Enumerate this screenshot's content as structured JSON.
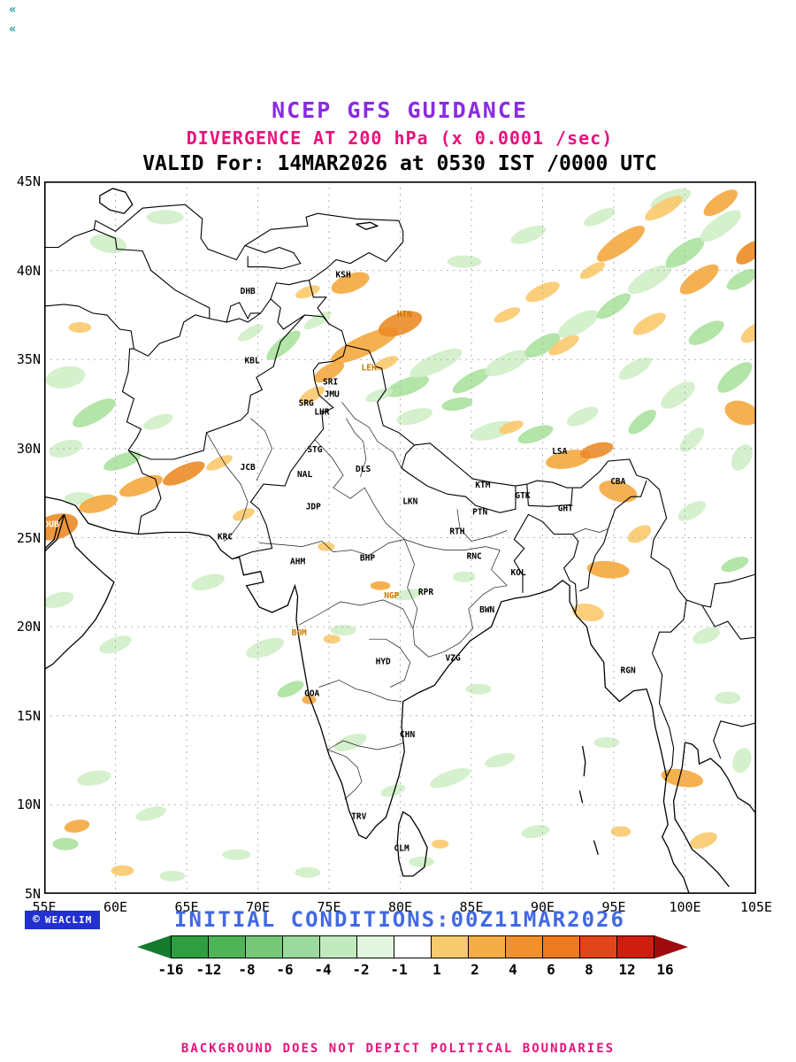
{
  "page": {
    "corner_glyph": "«",
    "background": "#ffffff"
  },
  "titles": {
    "line1": "NCEP GFS GUIDANCE",
    "line1_color": "#8a2be2",
    "line2": "DIVERGENCE AT 200 hPa (x 0.0001 /sec)",
    "line2_color": "#e8127c",
    "line3": "VALID For: 14MAR2026 at 0530 IST /0000 UTC",
    "line3_color": "#000000"
  },
  "footer": {
    "logo_symbol": "©",
    "logo_text": "WEACLIM",
    "logo_bg": "#2130cf",
    "initial_conditions": "INITIAL CONDITIONS:00Z11MAR2026",
    "initial_conditions_color": "#4169e1",
    "disclaimer": "BACKGROUND DOES NOT DEPICT POLITICAL BOUNDARIES",
    "disclaimer_color": "#e8127c"
  },
  "chart_data": {
    "type": "heatmap",
    "title": "NCEP GFS GUIDANCE",
    "subtitle": "DIVERGENCE AT 200 hPa (x 0.0001 /sec)",
    "valid": "14MAR2026 at 0530 IST /0000 UTC",
    "initial_conditions": "00Z11MAR2026",
    "grid": true,
    "legend_position": "bottom",
    "x_axis": {
      "range": [
        55,
        105
      ],
      "ticks": [
        55,
        60,
        65,
        70,
        75,
        80,
        85,
        90,
        95,
        100,
        105
      ],
      "labels": [
        "55E",
        "60E",
        "65E",
        "70E",
        "75E",
        "80E",
        "85E",
        "90E",
        "95E",
        "100E",
        "105E"
      ]
    },
    "y_axis": {
      "range": [
        5,
        45
      ],
      "ticks": [
        45,
        40,
        35,
        30,
        25,
        20,
        15,
        10,
        5
      ],
      "labels": [
        "45N",
        "40N",
        "35N",
        "30N",
        "25N",
        "20N",
        "15N",
        "10N",
        "5N"
      ]
    },
    "colorbar": {
      "levels": [
        "-16",
        "-12",
        "-8",
        "-6",
        "-4",
        "-2",
        "-1",
        "1",
        "2",
        "4",
        "6",
        "8",
        "12",
        "16"
      ],
      "segment_colors": [
        "#2f9e41",
        "#4fb456",
        "#76c878",
        "#9cd99c",
        "#c2eabf",
        "#e2f5de",
        "#ffffff",
        "#f7ca6e",
        "#f5ae47",
        "#f0912e",
        "#ee7a1f",
        "#e2451a",
        "#cf1d10"
      ],
      "arrow_left_color": "#157a2e",
      "arrow_right_color": "#9e0b0e"
    },
    "shading_palette": {
      "g1": "#cfeec6",
      "g2": "#abe19e",
      "o1": "#f9c96d",
      "o2": "#f4a93e",
      "o3": "#ec8b26"
    },
    "patches": [
      [
        80.5,
        33.5,
        1.6,
        0.45,
        -20,
        "g2"
      ],
      [
        82.5,
        34.8,
        2.0,
        0.5,
        -25,
        "g1"
      ],
      [
        85,
        33.8,
        1.5,
        0.4,
        -30,
        "g2"
      ],
      [
        87.5,
        34.8,
        1.7,
        0.5,
        -25,
        "g1"
      ],
      [
        90,
        35.8,
        1.4,
        0.45,
        -30,
        "g2"
      ],
      [
        92.5,
        37,
        1.6,
        0.5,
        -30,
        "g1"
      ],
      [
        95,
        38,
        1.4,
        0.4,
        -35,
        "g2"
      ],
      [
        97.5,
        39.5,
        1.7,
        0.5,
        -30,
        "g1"
      ],
      [
        100,
        41,
        1.6,
        0.5,
        -35,
        "g2"
      ],
      [
        102.5,
        42.5,
        1.7,
        0.5,
        -35,
        "g1"
      ],
      [
        104,
        39.5,
        1.2,
        0.4,
        -30,
        "g2"
      ],
      [
        99,
        44,
        1.5,
        0.45,
        -20,
        "g1"
      ],
      [
        94,
        43,
        1.2,
        0.35,
        -25,
        "g1"
      ],
      [
        89,
        42,
        1.3,
        0.4,
        -20,
        "g1"
      ],
      [
        84.5,
        40.5,
        1.2,
        0.35,
        0,
        "g1"
      ],
      [
        101.5,
        36.5,
        1.4,
        0.45,
        -30,
        "g2"
      ],
      [
        103.5,
        34,
        1.5,
        0.5,
        -40,
        "g2"
      ],
      [
        99.5,
        33,
        1.4,
        0.5,
        -35,
        "g1"
      ],
      [
        96.5,
        34.5,
        1.3,
        0.4,
        -30,
        "g1"
      ],
      [
        86.5,
        31,
        1.6,
        0.45,
        -15,
        "g1"
      ],
      [
        89.5,
        30.8,
        1.3,
        0.4,
        -20,
        "g2"
      ],
      [
        92.8,
        31.8,
        1.2,
        0.4,
        -25,
        "g1"
      ],
      [
        84,
        32.5,
        1.1,
        0.35,
        -10,
        "g2"
      ],
      [
        81,
        31.8,
        1.3,
        0.4,
        -15,
        "g1"
      ],
      [
        78.5,
        33,
        1.0,
        0.3,
        -20,
        "g1"
      ],
      [
        97,
        31.5,
        1.2,
        0.4,
        -40,
        "g2"
      ],
      [
        100.5,
        30.5,
        1.1,
        0.4,
        -45,
        "g1"
      ],
      [
        104,
        29.5,
        1.0,
        0.5,
        -60,
        "g1"
      ],
      [
        71.8,
        35.8,
        1.5,
        0.4,
        -40,
        "g2"
      ],
      [
        74.2,
        37.2,
        1.1,
        0.3,
        -30,
        "g1"
      ],
      [
        69.5,
        36.5,
        1.0,
        0.3,
        -30,
        "g1"
      ],
      [
        56.5,
        34,
        1.4,
        0.6,
        -10,
        "g1"
      ],
      [
        58.5,
        32,
        1.7,
        0.5,
        -30,
        "g2"
      ],
      [
        56.5,
        30,
        1.2,
        0.45,
        -15,
        "g1"
      ],
      [
        60.5,
        29.3,
        1.4,
        0.4,
        -20,
        "g2"
      ],
      [
        63,
        31.5,
        1.1,
        0.35,
        -20,
        "g1"
      ],
      [
        57.5,
        27.2,
        1.1,
        0.35,
        0,
        "g1"
      ],
      [
        59.5,
        41.5,
        1.3,
        0.5,
        10,
        "g1"
      ],
      [
        63.5,
        43,
        1.3,
        0.4,
        0,
        "g1"
      ],
      [
        56,
        21.5,
        1.1,
        0.4,
        -15,
        "g1"
      ],
      [
        60,
        19,
        1.2,
        0.4,
        -20,
        "g1"
      ],
      [
        66.5,
        22.5,
        1.2,
        0.4,
        -15,
        "g1"
      ],
      [
        70.5,
        18.8,
        1.4,
        0.45,
        -20,
        "g1"
      ],
      [
        72.3,
        16.5,
        1.0,
        0.35,
        -25,
        "g2"
      ],
      [
        76,
        19.8,
        0.9,
        0.3,
        0,
        "g1"
      ],
      [
        80.5,
        21.8,
        1.0,
        0.3,
        -10,
        "g1"
      ],
      [
        84.5,
        22.8,
        0.8,
        0.3,
        0,
        "g1"
      ],
      [
        76.5,
        13.5,
        1.2,
        0.4,
        -20,
        "g1"
      ],
      [
        79.5,
        10.8,
        0.9,
        0.3,
        -15,
        "g1"
      ],
      [
        83.5,
        11.5,
        1.5,
        0.4,
        -20,
        "g1"
      ],
      [
        87,
        12.5,
        1.1,
        0.35,
        -15,
        "g1"
      ],
      [
        85.5,
        16.5,
        0.9,
        0.3,
        0,
        "g1"
      ],
      [
        81.5,
        6.8,
        0.9,
        0.3,
        0,
        "g1"
      ],
      [
        58.5,
        11.5,
        1.2,
        0.4,
        -10,
        "g1"
      ],
      [
        62.5,
        9.5,
        1.1,
        0.35,
        -15,
        "g1"
      ],
      [
        56.5,
        7.8,
        0.9,
        0.35,
        0,
        "g2"
      ],
      [
        68.5,
        7.2,
        1.0,
        0.3,
        0,
        "g1"
      ],
      [
        73.5,
        6.2,
        0.9,
        0.3,
        0,
        "g1"
      ],
      [
        64,
        6,
        0.9,
        0.3,
        0,
        "g1"
      ],
      [
        89.5,
        8.5,
        1.0,
        0.35,
        -10,
        "g1"
      ],
      [
        94.5,
        13.5,
        0.9,
        0.3,
        0,
        "g1"
      ],
      [
        101.5,
        19.5,
        1.0,
        0.4,
        -20,
        "g1"
      ],
      [
        103,
        16,
        0.9,
        0.35,
        0,
        "g1"
      ],
      [
        104,
        12.5,
        0.9,
        0.5,
        -70,
        "g1"
      ],
      [
        100.5,
        26.5,
        1.1,
        0.4,
        -30,
        "g1"
      ],
      [
        103.5,
        23.5,
        1.0,
        0.35,
        -20,
        "g2"
      ],
      [
        77.5,
        35.8,
        2.6,
        0.55,
        -25,
        "o2"
      ],
      [
        80,
        37,
        1.6,
        0.6,
        -20,
        "o3"
      ],
      [
        75,
        34.3,
        1.2,
        0.4,
        -30,
        "o2"
      ],
      [
        73.8,
        33,
        1.0,
        0.35,
        -30,
        "o1"
      ],
      [
        76.5,
        39.3,
        1.4,
        0.5,
        -20,
        "o2"
      ],
      [
        73.5,
        38.8,
        0.9,
        0.3,
        -20,
        "o1"
      ],
      [
        79,
        34.8,
        0.9,
        0.3,
        -25,
        "o1"
      ],
      [
        95.5,
        41.5,
        2.0,
        0.5,
        -35,
        "o2"
      ],
      [
        98.5,
        43.5,
        1.5,
        0.4,
        -30,
        "o1"
      ],
      [
        102.5,
        43.8,
        1.4,
        0.45,
        -35,
        "o2"
      ],
      [
        104.5,
        41,
        1.1,
        0.45,
        -40,
        "o3"
      ],
      [
        101,
        39.5,
        1.6,
        0.5,
        -35,
        "o2"
      ],
      [
        97.5,
        37,
        1.3,
        0.4,
        -30,
        "o1"
      ],
      [
        104.8,
        36.5,
        1.0,
        0.4,
        -35,
        "o1"
      ],
      [
        93.5,
        40,
        1.0,
        0.3,
        -30,
        "o1"
      ],
      [
        90,
        38.8,
        1.3,
        0.4,
        -25,
        "o1"
      ],
      [
        104,
        32,
        0.8,
        1.0,
        -70,
        "o2"
      ],
      [
        91.8,
        29.4,
        1.6,
        0.5,
        -10,
        "o2"
      ],
      [
        93.8,
        29.9,
        1.2,
        0.4,
        -15,
        "o3"
      ],
      [
        95.3,
        27.6,
        0.7,
        1.1,
        -75,
        "o2"
      ],
      [
        96.8,
        25.2,
        0.9,
        0.4,
        -30,
        "o1"
      ],
      [
        94.6,
        23.2,
        0.6,
        1.2,
        -85,
        "o2"
      ],
      [
        93.2,
        20.8,
        0.6,
        0.9,
        -80,
        "o1"
      ],
      [
        91.5,
        35.8,
        1.2,
        0.35,
        -30,
        "o1"
      ],
      [
        87.5,
        37.5,
        1.0,
        0.3,
        -25,
        "o1"
      ],
      [
        87.8,
        31.2,
        0.9,
        0.3,
        -20,
        "o1"
      ],
      [
        55.8,
        25.6,
        1.6,
        0.7,
        -15,
        "o3"
      ],
      [
        58.8,
        26.9,
        1.4,
        0.45,
        -15,
        "o2"
      ],
      [
        61.8,
        27.9,
        1.6,
        0.45,
        -20,
        "o2"
      ],
      [
        64.8,
        28.6,
        1.6,
        0.45,
        -25,
        "o3"
      ],
      [
        67.3,
        29.2,
        1.0,
        0.3,
        -25,
        "o1"
      ],
      [
        69,
        26.3,
        0.8,
        0.3,
        -20,
        "o1"
      ],
      [
        57.5,
        36.8,
        0.8,
        0.3,
        0,
        "o1"
      ],
      [
        78.6,
        22.3,
        0.7,
        0.25,
        0,
        "o2"
      ],
      [
        75.2,
        19.3,
        0.6,
        0.25,
        0,
        "o1"
      ],
      [
        73.6,
        15.9,
        0.5,
        0.25,
        0,
        "o2"
      ],
      [
        74.8,
        24.5,
        0.6,
        0.25,
        0,
        "o1"
      ],
      [
        99.8,
        11.5,
        0.6,
        1.2,
        -80,
        "o2"
      ],
      [
        101.3,
        8,
        1.0,
        0.4,
        -20,
        "o1"
      ],
      [
        95.5,
        8.5,
        0.7,
        0.3,
        0,
        "o1"
      ],
      [
        57.3,
        8.8,
        0.9,
        0.35,
        -10,
        "o2"
      ],
      [
        60.5,
        6.3,
        0.8,
        0.3,
        0,
        "o1"
      ],
      [
        82.8,
        7.8,
        0.6,
        0.25,
        0,
        "o1"
      ]
    ],
    "stations": [
      {
        "code": "KSH",
        "lon": 76.0,
        "lat": 39.6
      },
      {
        "code": "DHB",
        "lon": 69.3,
        "lat": 38.7
      },
      {
        "code": "HTN",
        "lon": 80.3,
        "lat": 37.4,
        "color": "#c87800"
      },
      {
        "code": "KBL",
        "lon": 69.6,
        "lat": 34.8
      },
      {
        "code": "LEH",
        "lon": 77.8,
        "lat": 34.4,
        "color": "#c87800"
      },
      {
        "code": "SRI",
        "lon": 75.1,
        "lat": 33.6
      },
      {
        "code": "JMU",
        "lon": 75.2,
        "lat": 32.9
      },
      {
        "code": "SRG",
        "lon": 73.4,
        "lat": 32.4
      },
      {
        "code": "LHR",
        "lon": 74.5,
        "lat": 31.9
      },
      {
        "code": "STG",
        "lon": 74.0,
        "lat": 29.8
      },
      {
        "code": "JCB",
        "lon": 69.3,
        "lat": 28.8
      },
      {
        "code": "NAL",
        "lon": 73.3,
        "lat": 28.4
      },
      {
        "code": "DLS",
        "lon": 77.4,
        "lat": 28.7
      },
      {
        "code": "LSA",
        "lon": 91.2,
        "lat": 29.7
      },
      {
        "code": "KTM",
        "lon": 85.8,
        "lat": 27.8
      },
      {
        "code": "GTK",
        "lon": 88.6,
        "lat": 27.2
      },
      {
        "code": "CBA",
        "lon": 95.3,
        "lat": 28.0
      },
      {
        "code": "GHT",
        "lon": 91.6,
        "lat": 26.5
      },
      {
        "code": "JDP",
        "lon": 73.9,
        "lat": 26.6
      },
      {
        "code": "LKN",
        "lon": 80.7,
        "lat": 26.9
      },
      {
        "code": "PTN",
        "lon": 85.6,
        "lat": 26.3
      },
      {
        "code": "DUB",
        "lon": 55.5,
        "lat": 25.6,
        "color": "#ffffff"
      },
      {
        "code": "KRC",
        "lon": 67.7,
        "lat": 24.9
      },
      {
        "code": "RTH",
        "lon": 84.0,
        "lat": 25.2
      },
      {
        "code": "AHM",
        "lon": 72.8,
        "lat": 23.5
      },
      {
        "code": "BHP",
        "lon": 77.7,
        "lat": 23.7
      },
      {
        "code": "RNC",
        "lon": 85.2,
        "lat": 23.8
      },
      {
        "code": "KOL",
        "lon": 88.3,
        "lat": 22.9
      },
      {
        "code": "NGP",
        "lon": 79.4,
        "lat": 21.6,
        "color": "#c87800"
      },
      {
        "code": "RPR",
        "lon": 81.8,
        "lat": 21.8
      },
      {
        "code": "BWN",
        "lon": 86.1,
        "lat": 20.8
      },
      {
        "code": "BOM",
        "lon": 72.9,
        "lat": 19.5,
        "color": "#c87800"
      },
      {
        "code": "GOA",
        "lon": 73.8,
        "lat": 16.1
      },
      {
        "code": "HYD",
        "lon": 78.8,
        "lat": 17.9
      },
      {
        "code": "VZG",
        "lon": 83.7,
        "lat": 18.1
      },
      {
        "code": "RGN",
        "lon": 96.0,
        "lat": 17.4
      },
      {
        "code": "CHN",
        "lon": 80.5,
        "lat": 13.8
      },
      {
        "code": "TRV",
        "lon": 77.1,
        "lat": 9.2
      },
      {
        "code": "CLM",
        "lon": 80.1,
        "lat": 7.4
      }
    ]
  }
}
